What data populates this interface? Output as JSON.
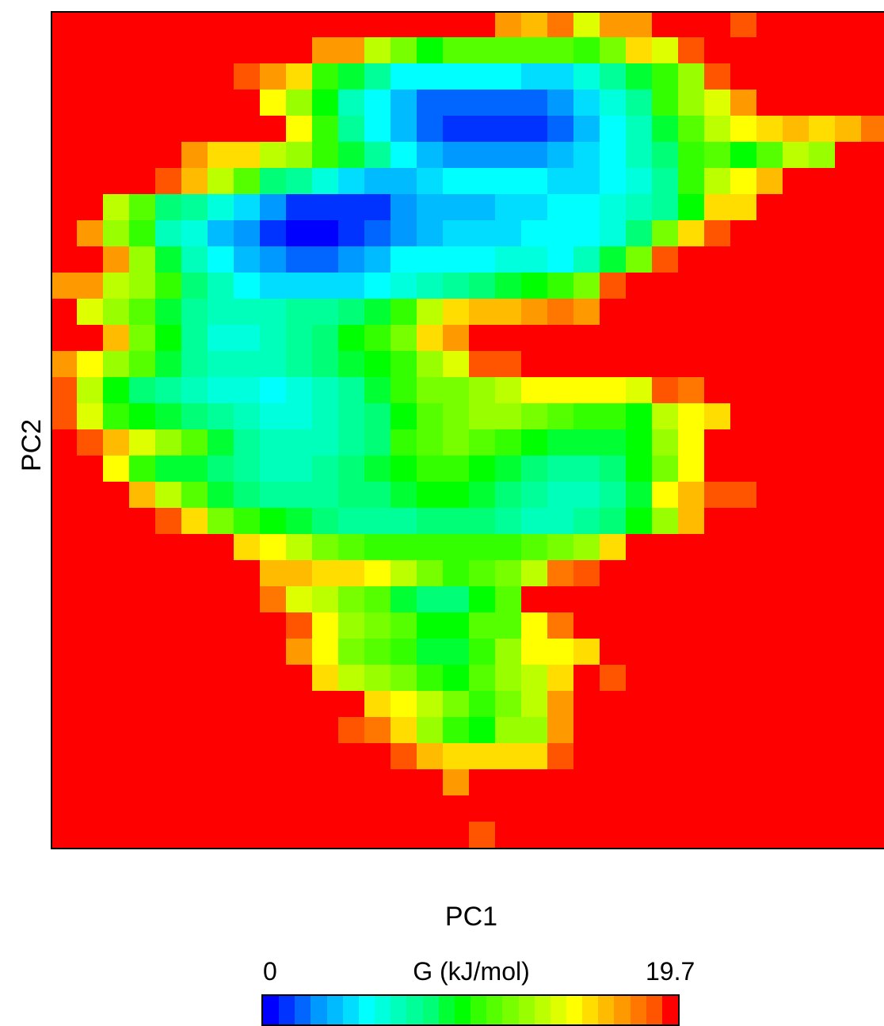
{
  "chart_data": {
    "type": "heatmap",
    "title": "",
    "xlabel": "PC1",
    "ylabel": "PC2",
    "colorbar": {
      "label": "G (kJ/mol)",
      "min": 0,
      "max": 19.7,
      "min_label": "0",
      "max_label": "19.7",
      "colors": [
        "#0000ff",
        "#0033ff",
        "#0066ff",
        "#0099ff",
        "#00bbff",
        "#00ddff",
        "#00ffff",
        "#00ffdd",
        "#00ffbb",
        "#00ff99",
        "#00ff77",
        "#00ff33",
        "#00ff00",
        "#33ff00",
        "#55ff00",
        "#77ff00",
        "#99ff00",
        "#bbff00",
        "#ddff00",
        "#ffff00",
        "#ffdd00",
        "#ffbb00",
        "#ff9900",
        "#ff7700",
        "#ff5500",
        "#ff0000"
      ]
    },
    "grid": {
      "rows": 32,
      "cols": 32,
      "value_levels": "0 = minimum free energy (blue), 25 = maximum (red), 26 discrete color steps spanning 0–19.7 kJ/mol",
      "values": [
        [
          25,
          25,
          25,
          25,
          25,
          25,
          25,
          25,
          25,
          25,
          25,
          25,
          25,
          25,
          25,
          25,
          25,
          22,
          21,
          23,
          18,
          22,
          22,
          25,
          25,
          25,
          24,
          25,
          25,
          25,
          25,
          25
        ],
        [
          25,
          25,
          25,
          25,
          25,
          25,
          25,
          25,
          25,
          25,
          22,
          22,
          17,
          15,
          12,
          14,
          14,
          14,
          14,
          14,
          13,
          15,
          20,
          18,
          24,
          25,
          25,
          25,
          25,
          25,
          25,
          25
        ],
        [
          25,
          25,
          25,
          25,
          25,
          25,
          25,
          24,
          22,
          20,
          13,
          11,
          9,
          6,
          6,
          6,
          6,
          6,
          5,
          5,
          7,
          9,
          11,
          13,
          16,
          24,
          25,
          25,
          25,
          25,
          25,
          25
        ],
        [
          25,
          25,
          25,
          25,
          25,
          25,
          25,
          25,
          19,
          16,
          12,
          8,
          6,
          4,
          2,
          2,
          2,
          2,
          2,
          3,
          5,
          7,
          9,
          13,
          16,
          18,
          22,
          25,
          25,
          25,
          25,
          25
        ],
        [
          25,
          25,
          25,
          25,
          25,
          25,
          25,
          25,
          25,
          19,
          13,
          9,
          6,
          4,
          2,
          1,
          1,
          1,
          1,
          2,
          4,
          6,
          8,
          11,
          14,
          17,
          19,
          20,
          21,
          20,
          21,
          23
        ],
        [
          25,
          25,
          25,
          25,
          25,
          22,
          20,
          20,
          17,
          16,
          13,
          11,
          9,
          6,
          4,
          3,
          3,
          3,
          3,
          4,
          5,
          6,
          8,
          10,
          13,
          14,
          12,
          14,
          17,
          16,
          25,
          25
        ],
        [
          25,
          25,
          25,
          25,
          24,
          21,
          17,
          14,
          10,
          9,
          7,
          5,
          4,
          4,
          5,
          6,
          6,
          6,
          6,
          5,
          5,
          6,
          7,
          9,
          13,
          17,
          19,
          21,
          25,
          25,
          25,
          25
        ],
        [
          25,
          25,
          17,
          14,
          10,
          9,
          7,
          5,
          3,
          1,
          1,
          1,
          1,
          3,
          4,
          4,
          4,
          5,
          5,
          6,
          6,
          7,
          8,
          9,
          12,
          20,
          20,
          25,
          25,
          25,
          25,
          25
        ],
        [
          25,
          22,
          16,
          13,
          8,
          7,
          4,
          3,
          1,
          0,
          0,
          1,
          2,
          3,
          4,
          5,
          5,
          5,
          6,
          6,
          6,
          7,
          10,
          15,
          20,
          24,
          25,
          25,
          25,
          25,
          25,
          25
        ],
        [
          25,
          25,
          22,
          16,
          11,
          8,
          6,
          4,
          3,
          2,
          2,
          3,
          4,
          6,
          6,
          6,
          6,
          7,
          7,
          6,
          8,
          11,
          15,
          24,
          25,
          25,
          25,
          25,
          25,
          25,
          25,
          25
        ],
        [
          22,
          22,
          17,
          16,
          13,
          10,
          8,
          6,
          5,
          5,
          5,
          5,
          6,
          7,
          8,
          9,
          10,
          11,
          12,
          13,
          15,
          24,
          25,
          25,
          25,
          25,
          25,
          25,
          25,
          25,
          25,
          25
        ],
        [
          25,
          18,
          16,
          14,
          11,
          9,
          8,
          8,
          8,
          9,
          9,
          10,
          11,
          13,
          17,
          20,
          21,
          21,
          22,
          23,
          22,
          25,
          25,
          25,
          25,
          25,
          25,
          25,
          25,
          25,
          25,
          25
        ],
        [
          25,
          25,
          21,
          15,
          12,
          9,
          7,
          7,
          8,
          9,
          10,
          12,
          13,
          15,
          20,
          22,
          25,
          25,
          25,
          25,
          25,
          25,
          25,
          25,
          25,
          25,
          25,
          25,
          25,
          25,
          25,
          25
        ],
        [
          22,
          19,
          16,
          14,
          11,
          9,
          8,
          8,
          8,
          9,
          10,
          11,
          12,
          13,
          16,
          18,
          24,
          24,
          25,
          25,
          25,
          25,
          25,
          25,
          25,
          25,
          25,
          25,
          25,
          25,
          25,
          25
        ],
        [
          24,
          17,
          12,
          10,
          9,
          8,
          7,
          7,
          6,
          7,
          8,
          9,
          11,
          13,
          15,
          15,
          16,
          17,
          19,
          19,
          19,
          19,
          18,
          24,
          23,
          25,
          25,
          25,
          25,
          25,
          25,
          25
        ],
        [
          24,
          18,
          13,
          12,
          11,
          10,
          9,
          8,
          7,
          7,
          8,
          9,
          10,
          12,
          14,
          15,
          16,
          16,
          15,
          14,
          13,
          13,
          12,
          17,
          19,
          20,
          25,
          25,
          25,
          25,
          25,
          25
        ],
        [
          25,
          24,
          21,
          18,
          16,
          14,
          11,
          9,
          8,
          8,
          8,
          9,
          10,
          13,
          14,
          15,
          14,
          13,
          12,
          11,
          11,
          11,
          12,
          16,
          19,
          25,
          25,
          25,
          25,
          25,
          25,
          25
        ],
        [
          25,
          25,
          19,
          13,
          11,
          11,
          10,
          9,
          8,
          8,
          9,
          10,
          11,
          12,
          13,
          13,
          12,
          11,
          10,
          9,
          9,
          10,
          12,
          15,
          19,
          25,
          25,
          25,
          25,
          25,
          25,
          25
        ],
        [
          25,
          25,
          25,
          21,
          17,
          14,
          11,
          10,
          9,
          9,
          9,
          10,
          10,
          11,
          12,
          12,
          11,
          10,
          9,
          8,
          8,
          9,
          11,
          19,
          21,
          24,
          24,
          25,
          25,
          25,
          25,
          25
        ],
        [
          25,
          25,
          25,
          25,
          24,
          20,
          15,
          13,
          12,
          11,
          10,
          9,
          9,
          9,
          10,
          10,
          10,
          9,
          8,
          8,
          9,
          10,
          12,
          16,
          21,
          25,
          25,
          25,
          25,
          25,
          25,
          25
        ],
        [
          25,
          25,
          25,
          25,
          25,
          25,
          25,
          20,
          19,
          17,
          15,
          14,
          13,
          13,
          13,
          13,
          13,
          13,
          14,
          15,
          16,
          20,
          25,
          25,
          25,
          25,
          25,
          25,
          25,
          25,
          25,
          25
        ],
        [
          25,
          25,
          25,
          25,
          25,
          25,
          25,
          25,
          21,
          21,
          20,
          20,
          19,
          17,
          15,
          13,
          14,
          15,
          17,
          23,
          24,
          25,
          25,
          25,
          25,
          25,
          25,
          25,
          25,
          25,
          25,
          25
        ],
        [
          25,
          25,
          25,
          25,
          25,
          25,
          25,
          25,
          23,
          18,
          17,
          15,
          14,
          11,
          10,
          10,
          12,
          14,
          25,
          25,
          25,
          25,
          25,
          25,
          25,
          25,
          25,
          25,
          25,
          25,
          25,
          25
        ],
        [
          25,
          25,
          25,
          25,
          25,
          25,
          25,
          25,
          25,
          24,
          19,
          16,
          15,
          14,
          12,
          12,
          14,
          14,
          19,
          23,
          25,
          25,
          25,
          25,
          25,
          25,
          25,
          25,
          25,
          25,
          25,
          25
        ],
        [
          25,
          25,
          25,
          25,
          25,
          25,
          25,
          25,
          25,
          22,
          19,
          15,
          14,
          13,
          11,
          11,
          13,
          16,
          19,
          19,
          20,
          25,
          25,
          25,
          25,
          25,
          25,
          25,
          25,
          25,
          25,
          25
        ],
        [
          25,
          25,
          25,
          25,
          25,
          25,
          25,
          25,
          25,
          25,
          20,
          17,
          16,
          15,
          13,
          12,
          14,
          16,
          17,
          20,
          25,
          24,
          25,
          25,
          25,
          25,
          25,
          25,
          25,
          25,
          25,
          25
        ],
        [
          25,
          25,
          25,
          25,
          25,
          25,
          25,
          25,
          25,
          25,
          25,
          25,
          20,
          19,
          17,
          15,
          13,
          15,
          17,
          22,
          25,
          25,
          25,
          25,
          25,
          25,
          25,
          25,
          25,
          25,
          25,
          25
        ],
        [
          25,
          25,
          25,
          25,
          25,
          25,
          25,
          25,
          25,
          25,
          25,
          24,
          23,
          20,
          16,
          13,
          12,
          16,
          16,
          22,
          25,
          25,
          25,
          25,
          25,
          25,
          25,
          25,
          25,
          25,
          25,
          25
        ],
        [
          25,
          25,
          25,
          25,
          25,
          25,
          25,
          25,
          25,
          25,
          25,
          25,
          25,
          24,
          21,
          20,
          20,
          20,
          20,
          24,
          25,
          25,
          25,
          25,
          25,
          25,
          25,
          25,
          25,
          25,
          25,
          25
        ],
        [
          25,
          25,
          25,
          25,
          25,
          25,
          25,
          25,
          25,
          25,
          25,
          25,
          25,
          25,
          25,
          22,
          25,
          25,
          25,
          25,
          25,
          25,
          25,
          25,
          25,
          25,
          25,
          25,
          25,
          25,
          25,
          25
        ],
        [
          25,
          25,
          25,
          25,
          25,
          25,
          25,
          25,
          25,
          25,
          25,
          25,
          25,
          25,
          25,
          25,
          25,
          25,
          25,
          25,
          25,
          25,
          25,
          25,
          25,
          25,
          25,
          25,
          25,
          25,
          25,
          25
        ],
        [
          25,
          25,
          25,
          25,
          25,
          25,
          25,
          25,
          25,
          25,
          25,
          25,
          25,
          25,
          25,
          25,
          24,
          25,
          25,
          25,
          25,
          25,
          25,
          25,
          25,
          25,
          25,
          25,
          25,
          25,
          25,
          25
        ]
      ]
    }
  }
}
